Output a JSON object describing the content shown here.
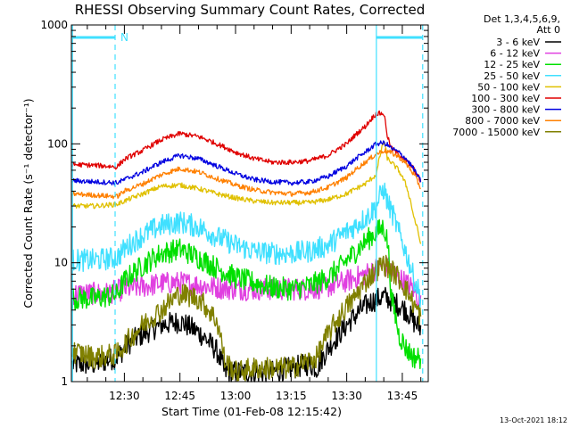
{
  "chart_data": {
    "type": "line",
    "title": "RHESSI Observing Summary Count Rates, Corrected",
    "xlabel": "Start Time (01-Feb-08 12:15:42)",
    "ylabel": "Corrected Count Rate (s⁻¹ detector⁻¹)",
    "y_scale": "log",
    "ylim": [
      1,
      1000
    ],
    "y_ticks": [
      {
        "value": 1,
        "label": "1"
      },
      {
        "value": 10,
        "label": "10"
      },
      {
        "value": 100,
        "label": "100"
      },
      {
        "value": 1000,
        "label": "1000"
      }
    ],
    "xlim_minutes": [
      15.7,
      112
    ],
    "x_ticks": [
      {
        "value": 30,
        "label": "12:30"
      },
      {
        "value": 45,
        "label": "12:45"
      },
      {
        "value": 60,
        "label": "13:00"
      },
      {
        "value": 75,
        "label": "13:15"
      },
      {
        "value": 90,
        "label": "13:30"
      },
      {
        "value": 105,
        "label": "13:45"
      }
    ],
    "legend_header": [
      "Det 1,3,4,5,6,9,",
      "Att 0"
    ],
    "legend_position": "right",
    "series": [
      {
        "name": "3 - 6 keV",
        "color": "#000000",
        "noisy": true,
        "x": [
          16,
          22,
          28,
          32,
          36,
          40,
          45,
          50,
          55,
          57,
          60,
          65,
          70,
          75,
          80,
          82,
          85,
          88,
          92,
          96,
          100,
          101,
          104,
          106,
          108,
          110
        ],
        "y": [
          1.4,
          1.4,
          1.6,
          2.2,
          2.6,
          3.0,
          3.2,
          2.6,
          1.8,
          1.2,
          1.2,
          1.2,
          1.2,
          1.3,
          1.4,
          1.3,
          1.9,
          2.5,
          3.5,
          4.6,
          5.2,
          5.0,
          4.4,
          4.0,
          3.2,
          2.8
        ]
      },
      {
        "name": "6 - 12 keV",
        "color": "#e040e0",
        "noisy": true,
        "x": [
          16,
          25,
          30,
          35,
          40,
          45,
          50,
          55,
          60,
          65,
          70,
          75,
          80,
          85,
          90,
          95,
          100,
          101,
          104,
          108,
          110
        ],
        "y": [
          5.5,
          5.5,
          6.0,
          6.3,
          6.7,
          6.8,
          6.5,
          6.2,
          6.0,
          6.0,
          6.0,
          6.0,
          6.0,
          6.3,
          7.0,
          8.0,
          9.5,
          9.2,
          7.5,
          6.0,
          4.5
        ]
      },
      {
        "name": "12 - 25 keV",
        "color": "#00e000",
        "noisy": true,
        "x": [
          16,
          22,
          28,
          30,
          35,
          40,
          45,
          50,
          55,
          60,
          65,
          70,
          75,
          80,
          85,
          88,
          92,
          96,
          98,
          100,
          101,
          102,
          104,
          106,
          108,
          110
        ],
        "y": [
          5.0,
          5.0,
          5.4,
          7.0,
          9.5,
          12.0,
          13.0,
          11.0,
          9.0,
          7.5,
          6.8,
          6.2,
          6.0,
          6.4,
          7.5,
          9.0,
          12.0,
          16.0,
          18.0,
          20.0,
          15.0,
          5.0,
          2.5,
          1.9,
          1.6,
          1.6
        ]
      },
      {
        "name": "25 - 50 keV",
        "color": "#40e0ff",
        "noisy": true,
        "x": [
          16,
          22,
          28,
          30,
          35,
          40,
          45,
          50,
          55,
          60,
          65,
          70,
          75,
          80,
          85,
          88,
          92,
          96,
          98,
          100,
          101,
          104,
          106,
          108,
          110
        ],
        "y": [
          10.5,
          10.5,
          11.0,
          13.0,
          17.0,
          20.5,
          22.0,
          20.0,
          16.5,
          14.0,
          12.5,
          12.0,
          12.0,
          12.5,
          14.0,
          16.5,
          20.0,
          25.0,
          30.0,
          42.0,
          32.0,
          18.0,
          12.0,
          7.5,
          5.0
        ]
      },
      {
        "name": "50 - 100 keV",
        "color": "#e0c000",
        "noisy": false,
        "x": [
          16,
          22,
          28,
          30,
          35,
          40,
          45,
          50,
          55,
          60,
          65,
          70,
          75,
          80,
          85,
          90,
          95,
          98,
          100,
          101,
          104,
          106,
          108,
          110
        ],
        "y": [
          30,
          30,
          31,
          33,
          38,
          44,
          45,
          42,
          38,
          35,
          33,
          32,
          32,
          32,
          34,
          38,
          46,
          55,
          105,
          75,
          60,
          45,
          25,
          14
        ]
      },
      {
        "name": "100 - 300 keV",
        "color": "#e00000",
        "noisy": false,
        "x": [
          16,
          22,
          28,
          30,
          35,
          40,
          45,
          50,
          55,
          60,
          65,
          70,
          75,
          80,
          85,
          90,
          95,
          98,
          100,
          101,
          102,
          104,
          106,
          108,
          110
        ],
        "y": [
          67,
          66,
          64,
          74,
          88,
          108,
          122,
          115,
          100,
          85,
          75,
          70,
          70,
          72,
          80,
          100,
          140,
          180,
          180,
          115,
          92,
          82,
          72,
          62,
          48
        ]
      },
      {
        "name": "300 - 800 keV",
        "color": "#0000e0",
        "noisy": false,
        "x": [
          16,
          22,
          28,
          30,
          35,
          40,
          45,
          50,
          55,
          60,
          65,
          70,
          75,
          80,
          85,
          90,
          95,
          98,
          100,
          101,
          102,
          104,
          106,
          108,
          110
        ],
        "y": [
          49,
          48,
          47,
          50,
          58,
          70,
          80,
          75,
          65,
          56,
          50,
          48,
          47,
          48,
          53,
          65,
          85,
          100,
          102,
          98,
          92,
          85,
          75,
          62,
          48
        ]
      },
      {
        "name": "800 - 7000 keV",
        "color": "#ff8000",
        "noisy": false,
        "x": [
          16,
          22,
          28,
          30,
          35,
          40,
          45,
          50,
          55,
          60,
          65,
          70,
          75,
          80,
          85,
          90,
          95,
          98,
          100,
          101,
          102,
          104,
          106,
          108,
          110
        ],
        "y": [
          38,
          37,
          36,
          40,
          46,
          55,
          62,
          58,
          51,
          45,
          41,
          39,
          38,
          39,
          43,
          52,
          70,
          82,
          88,
          86,
          84,
          78,
          68,
          56,
          42
        ]
      },
      {
        "name": "7000 - 15000 keV",
        "color": "#808000",
        "noisy": true,
        "x": [
          16,
          22,
          28,
          32,
          36,
          40,
          45,
          50,
          55,
          57,
          60,
          65,
          70,
          75,
          80,
          82,
          85,
          88,
          92,
          96,
          100,
          101,
          104,
          106,
          108,
          110
        ],
        "y": [
          1.8,
          1.6,
          1.7,
          2.4,
          3.2,
          4.0,
          5.5,
          5.0,
          3.2,
          1.5,
          1.2,
          1.3,
          1.3,
          1.3,
          1.5,
          1.6,
          2.5,
          3.5,
          5.0,
          7.5,
          9.8,
          9.2,
          7.5,
          6.0,
          4.5,
          3.5
        ]
      }
    ],
    "annotations": {
      "attenuator_bar_label": "N",
      "attenuator_bars": [
        [
          16,
          27.5
        ],
        [
          98,
          110.5
        ]
      ],
      "solid_vlines": [
        16,
        98
      ],
      "dashed_vlines": [
        27.5,
        110.5
      ]
    },
    "timestamp": "13-Oct-2021 18:12",
    "colors": {
      "axis": "#000000",
      "annotation": "#40e0ff",
      "background": "#ffffff"
    }
  }
}
